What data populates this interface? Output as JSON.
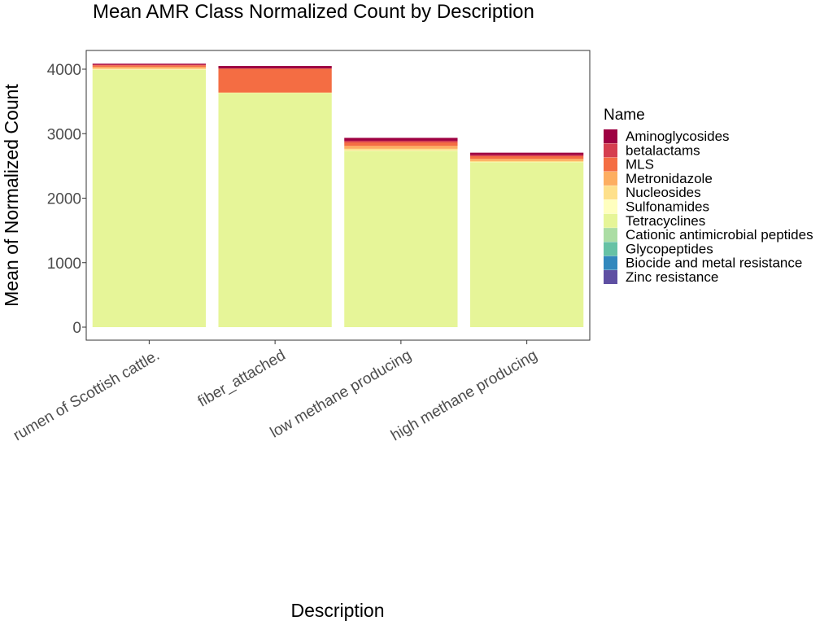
{
  "chart_data": {
    "type": "bar",
    "stacked": true,
    "title": "Mean AMR Class Normalized Count by Description",
    "xlabel": "Description",
    "ylabel": "Mean of Normalized Count",
    "ylim": [
      0,
      4200
    ],
    "yticks": [
      0,
      1000,
      2000,
      3000,
      4000
    ],
    "grid": false,
    "legend_position": "right",
    "legend_title": "Name",
    "categories": [
      "rumen of Scottish cattle.",
      "fiber_attached",
      "low methane producing",
      "high methane producing"
    ],
    "series": [
      {
        "name": "Aminoglycosides",
        "color": "#9e0142",
        "values": [
          15,
          40,
          45,
          35
        ]
      },
      {
        "name": "betalactams",
        "color": "#d53e4f",
        "values": [
          10,
          0,
          25,
          20
        ]
      },
      {
        "name": "MLS",
        "color": "#f46d43",
        "values": [
          25,
          370,
          55,
          40
        ]
      },
      {
        "name": "Metronidazole",
        "color": "#fdae61",
        "values": [
          25,
          5,
          45,
          35
        ]
      },
      {
        "name": "Nucleosides",
        "color": "#fee08b",
        "values": [
          15,
          5,
          25,
          15
        ]
      },
      {
        "name": "Sulfonamides",
        "color": "#ffffbf",
        "values": [
          5,
          0,
          5,
          5
        ]
      },
      {
        "name": "Tetracyclines",
        "color": "#e6f598",
        "values": [
          3990,
          3630,
          2735,
          2555
        ]
      },
      {
        "name": "Cationic antimicrobial peptides",
        "color": "#abdda4",
        "values": [
          0,
          0,
          0,
          0
        ]
      },
      {
        "name": "Glycopeptides",
        "color": "#66c2a5",
        "values": [
          0,
          0,
          0,
          0
        ]
      },
      {
        "name": "Biocide and metal resistance",
        "color": "#3288bd",
        "values": [
          0,
          0,
          0,
          0
        ]
      },
      {
        "name": "Zinc resistance",
        "color": "#5e4fa2",
        "values": [
          0,
          0,
          0,
          0
        ]
      }
    ]
  }
}
